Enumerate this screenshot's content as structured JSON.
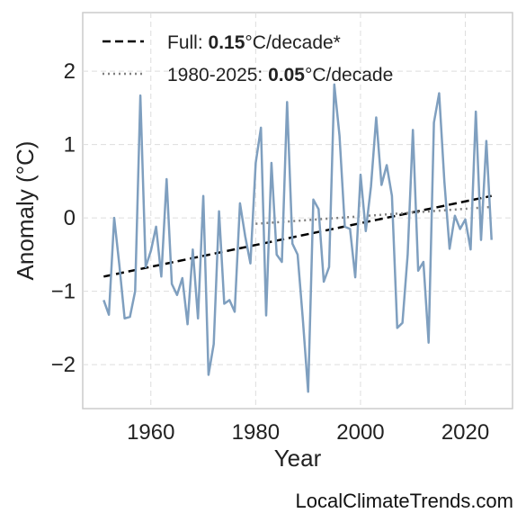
{
  "chart_data": {
    "type": "line",
    "title": "",
    "xlabel": "Year",
    "ylabel": "Anomaly (°C)",
    "xlim": [
      1947,
      2029
    ],
    "ylim": [
      -2.6,
      2.8
    ],
    "xticks": [
      1960,
      1980,
      2000,
      2020
    ],
    "yticks": [
      -2,
      -1,
      0,
      1,
      2
    ],
    "ytick_labels": [
      "−2",
      "−1",
      "0",
      "1",
      "2"
    ],
    "grid": true,
    "legend_position": "top-left",
    "colors": {
      "series": "#7f9fbf",
      "full_trend": "#000000",
      "recent_trend": "#808080"
    },
    "series": [
      {
        "name": "",
        "x": [
          1951,
          1952,
          1953,
          1954,
          1955,
          1956,
          1957,
          1958,
          1959,
          1960,
          1961,
          1962,
          1963,
          1964,
          1965,
          1966,
          1967,
          1968,
          1969,
          1970,
          1971,
          1972,
          1973,
          1974,
          1975,
          1976,
          1977,
          1978,
          1979,
          1980,
          1981,
          1982,
          1983,
          1984,
          1985,
          1986,
          1987,
          1988,
          1989,
          1990,
          1991,
          1992,
          1993,
          1994,
          1995,
          1996,
          1997,
          1998,
          1999,
          2000,
          2001,
          2002,
          2003,
          2004,
          2005,
          2006,
          2007,
          2008,
          2009,
          2010,
          2011,
          2012,
          2013,
          2014,
          2015,
          2016,
          2017,
          2018,
          2019,
          2020,
          2021,
          2022,
          2023,
          2024,
          2025
        ],
        "values": [
          -1.12,
          -1.32,
          0.0,
          -0.65,
          -1.37,
          -1.35,
          -1.0,
          1.67,
          -0.67,
          -0.45,
          -0.12,
          -0.8,
          0.53,
          -0.9,
          -1.05,
          -0.82,
          -1.45,
          -0.43,
          -1.37,
          0.3,
          -2.14,
          -1.72,
          0.09,
          -1.17,
          -1.12,
          -1.28,
          0.2,
          -0.25,
          -0.62,
          0.75,
          1.23,
          -1.33,
          0.75,
          -0.5,
          -0.6,
          1.58,
          -0.35,
          -0.5,
          -1.38,
          -2.37,
          0.25,
          0.12,
          -0.87,
          -0.67,
          1.82,
          1.12,
          -0.12,
          -0.15,
          -0.81,
          0.59,
          -0.18,
          0.43,
          1.37,
          0.45,
          0.72,
          0.3,
          -1.5,
          -1.43,
          -0.5,
          1.2,
          -0.72,
          -0.6,
          -1.7,
          1.3,
          1.7,
          0.5,
          -0.42,
          0.03,
          -0.15,
          -0.02,
          -0.43,
          1.45,
          -0.3,
          1.05,
          -0.3
        ]
      }
    ],
    "trends": [
      {
        "label_prefix": "Full: ",
        "rate": "0.15",
        "label_suffix": "°C/decade*",
        "x": [
          1951,
          2025
        ],
        "y": [
          -0.8,
          0.3
        ],
        "style": "dashed"
      },
      {
        "label_prefix": "1980-2025: ",
        "rate": "0.05",
        "label_suffix": "°C/decade",
        "x": [
          1980,
          2025
        ],
        "y": [
          -0.08,
          0.15
        ],
        "style": "dotted"
      }
    ]
  },
  "footer": {
    "text": "LocalClimateTrends.com"
  }
}
